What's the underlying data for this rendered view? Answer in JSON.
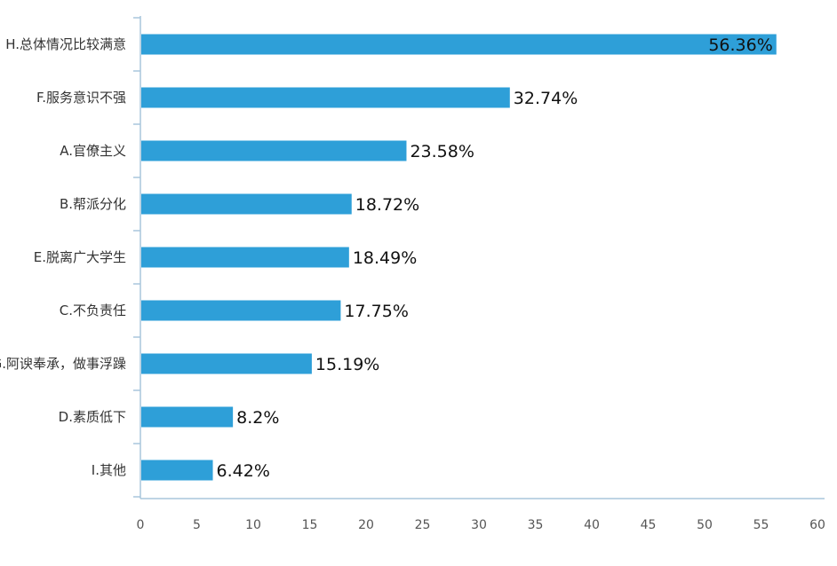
{
  "chart_data": {
    "type": "bar",
    "orientation": "horizontal",
    "title": "",
    "xlabel": "",
    "ylabel": "",
    "categories": [
      "H.总体情况比较满意",
      "F.服务意识不强",
      "A.官僚主义",
      "B.帮派分化",
      "E.脱离广大学生",
      "C.不负责任",
      "G.阿谀奉承，做事浮躁",
      "D.素质低下",
      "I.其他"
    ],
    "values": [
      56.36,
      32.74,
      23.58,
      18.72,
      18.49,
      17.75,
      15.19,
      8.2,
      6.42
    ],
    "value_labels": [
      "56.36%",
      "32.74%",
      "23.58%",
      "18.72%",
      "18.49%",
      "17.75%",
      "15.19%",
      "8.2%",
      "6.42%"
    ],
    "xlim": [
      0,
      60
    ],
    "xticks": [
      0,
      5,
      10,
      15,
      20,
      25,
      30,
      35,
      40,
      45,
      50,
      55,
      60
    ],
    "grid": false,
    "legend": "none",
    "colors": {
      "bar": "#2e9fd8",
      "axis": "#a9c6dc"
    }
  }
}
